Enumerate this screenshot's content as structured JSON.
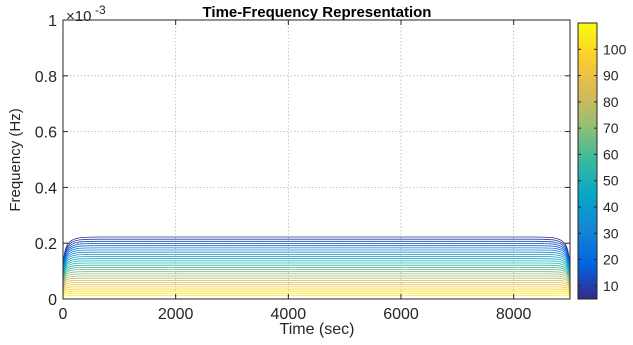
{
  "chart_data": {
    "type": "contour",
    "title": "Time-Frequency Representation",
    "xlabel": "Time (sec)",
    "ylabel": "Frequency (Hz)",
    "y_exponent_base": "×10",
    "y_exponent_power": "-3",
    "xlim": [
      0,
      9000
    ],
    "ylim": [
      0,
      0.001
    ],
    "x_ticks": [
      0,
      2000,
      4000,
      6000,
      8000
    ],
    "x_tick_labels": [
      "0",
      "2000",
      "4000",
      "6000",
      "8000"
    ],
    "y_ticks": [
      0,
      0.0002,
      0.0004,
      0.0006,
      0.0008,
      0.001
    ],
    "y_tick_labels": [
      "0",
      "0.2",
      "0.4",
      "0.6",
      "0.8",
      "1"
    ],
    "grid": true,
    "colormap": "parula",
    "colorbar": {
      "range": [
        5,
        110
      ],
      "ticks": [
        10,
        20,
        30,
        40,
        50,
        60,
        70,
        80,
        90,
        100
      ],
      "tick_labels": [
        "10",
        "20",
        "30",
        "40",
        "50",
        "60",
        "70",
        "80",
        "90",
        "100"
      ]
    },
    "contour_levels": {
      "count": 28,
      "min_level": 5,
      "max_level": 109,
      "top_frequency": 0.00023,
      "edge_taper_time": 700
    },
    "colors": {
      "parula_stops": [
        "#352a87",
        "#0363e1",
        "#1485d4",
        "#06a7c6",
        "#38b99e",
        "#92bf73",
        "#d9ba56",
        "#fcce2e",
        "#f9fb0e"
      ]
    }
  }
}
